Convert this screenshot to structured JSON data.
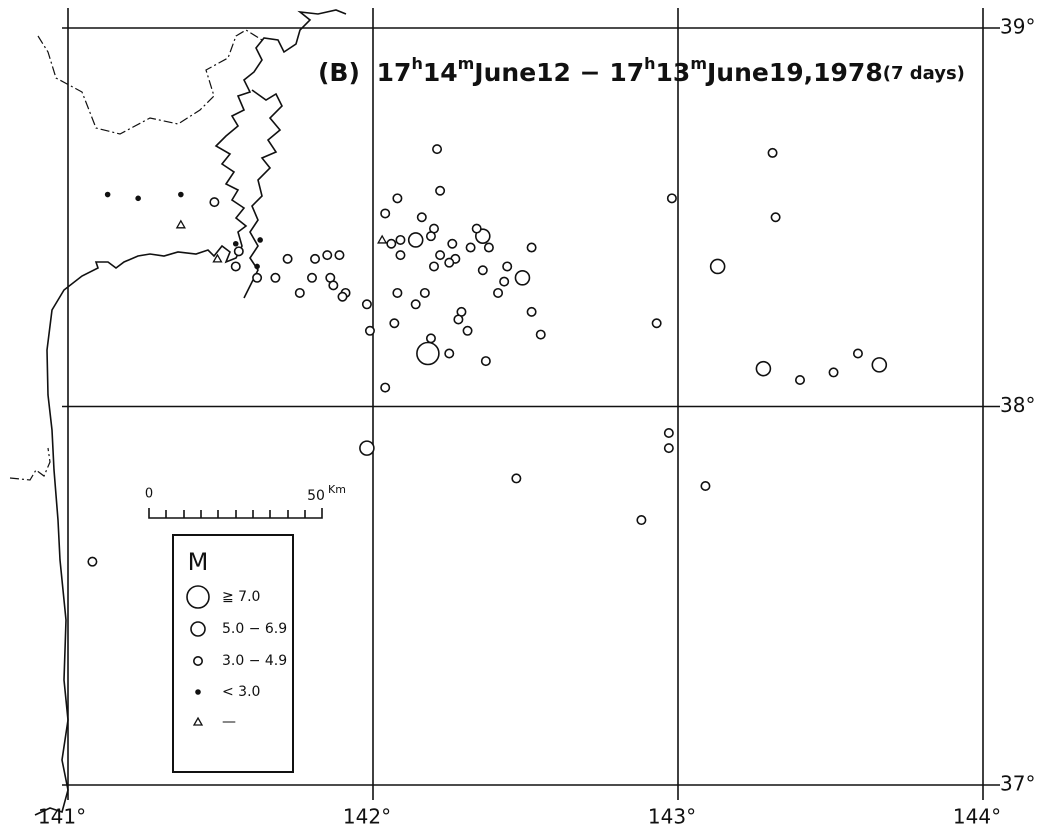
{
  "chart_data": {
    "type": "scatter",
    "title": [
      "(B)",
      "17",
      "h",
      "14",
      "m",
      "June12",
      "−",
      "17",
      "h",
      "13",
      "m",
      "June19,1978",
      "(7 days)"
    ],
    "xlim": [
      141,
      144
    ],
    "ylim": [
      37,
      39
    ],
    "xticks": [
      {
        "value": 141,
        "label": "141°"
      },
      {
        "value": 142,
        "label": "142°"
      },
      {
        "value": 143,
        "label": "143°"
      },
      {
        "value": 144,
        "label": "144°"
      }
    ],
    "yticks": [
      {
        "value": 37,
        "label": "37°"
      },
      {
        "value": 38,
        "label": "38°"
      },
      {
        "value": 39,
        "label": "39°"
      }
    ],
    "grid": true,
    "legend_title": "M",
    "scale_bar": {
      "start": "0",
      "end": "50",
      "unit": "Km"
    },
    "series": [
      {
        "name": "≧ 7.0",
        "color": "#111",
        "marker": "circle-large",
        "x": [
          142.18
        ],
        "y": [
          38.14
        ]
      },
      {
        "name": "5.0 − 6.9",
        "color": "#111",
        "marker": "circle-medium",
        "x": [
          143.13,
          142.49,
          141.98,
          143.28,
          143.66,
          142.14,
          142.36
        ],
        "y": [
          38.37,
          38.34,
          37.89,
          38.1,
          38.11,
          38.44,
          38.45
        ]
      },
      {
        "name": "3.0 − 4.9",
        "color": "#111",
        "marker": "circle-small",
        "x": [
          142.21,
          142.08,
          142.22,
          142.04,
          142.16,
          142.2,
          142.34,
          142.06,
          142.09,
          142.19,
          142.26,
          142.32,
          142.38,
          142.52,
          142.09,
          142.22,
          142.27,
          142.25,
          142.36,
          142.2,
          142.44,
          141.85,
          141.89,
          141.81,
          141.72,
          141.86,
          141.8,
          141.68,
          141.87,
          141.76,
          141.91,
          141.9,
          142.08,
          142.17,
          142.43,
          142.41,
          141.98,
          142.14,
          142.29,
          142.28,
          142.31,
          142.52,
          142.55,
          142.07,
          141.99,
          142.19,
          142.25,
          142.37,
          142.04,
          141.48,
          141.56,
          141.55,
          141.62,
          142.98,
          143.31,
          143.32,
          142.93,
          143.4,
          143.51,
          143.59,
          142.97,
          142.97,
          142.47,
          143.09,
          142.88,
          141.08
        ],
        "y": [
          38.68,
          38.55,
          38.57,
          38.51,
          38.5,
          38.47,
          38.47,
          38.43,
          38.44,
          38.45,
          38.43,
          38.42,
          38.42,
          38.42,
          38.4,
          38.4,
          38.39,
          38.38,
          38.36,
          38.37,
          38.37,
          38.4,
          38.4,
          38.39,
          38.39,
          38.34,
          38.34,
          38.34,
          38.32,
          38.3,
          38.3,
          38.29,
          38.3,
          38.3,
          38.33,
          38.3,
          38.27,
          38.27,
          38.25,
          38.23,
          38.2,
          38.25,
          38.19,
          38.22,
          38.2,
          38.18,
          38.14,
          38.12,
          38.05,
          38.54,
          38.41,
          38.37,
          38.34,
          38.55,
          38.67,
          38.5,
          38.22,
          38.07,
          38.09,
          38.14,
          37.93,
          37.89,
          37.81,
          37.79,
          37.7,
          37.59
        ]
      },
      {
        "name": "< 3.0",
        "color": "#111",
        "marker": "dot",
        "x": [
          141.13,
          141.23,
          141.37,
          141.63,
          141.55,
          141.62
        ],
        "y": [
          38.56,
          38.55,
          38.56,
          38.44,
          38.43,
          38.37
        ]
      },
      {
        "name": "—",
        "color": "#111",
        "marker": "triangle",
        "x": [
          141.37,
          142.03,
          141.49
        ],
        "y": [
          38.48,
          38.44,
          38.39
        ]
      }
    ]
  }
}
